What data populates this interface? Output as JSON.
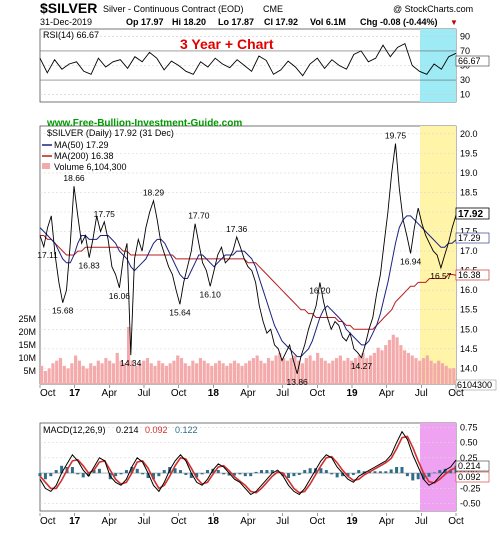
{
  "header": {
    "symbol": "$SILVER",
    "description": "Silver - Continuous Contract (EOD)",
    "exchange": "CME",
    "copyright": "@ StockCharts.com",
    "date": "31-Dec-2019",
    "open": "Op 17.97",
    "high": "Hi 18.20",
    "low": "Lo 17.87",
    "close": "Cl 17.92",
    "volume": "Vol 6.1M",
    "change": "Chg -0.08 (-0.44%)",
    "change_marker": "▼",
    "chart_caption": "3 Year + Chart",
    "website": "www.Free-Bullion-Investment-Guide.com"
  },
  "colors": {
    "price": "#000000",
    "ma50": "#1a237e",
    "ma200": "#b71c1c",
    "volume": "#f4aaaa",
    "macd": "#000000",
    "signal": "#d32f2f",
    "histogram": "#2e6e8a",
    "rsi_highlight": "#9eeaf5",
    "price_highlight": "#fff4a8",
    "macd_highlight": "#f0a2f2",
    "caption": "#e00000",
    "website": "#009900"
  },
  "chart_data": [
    {
      "type": "line",
      "panel": "RSI",
      "title": "RSI(14) 66.67",
      "y_ticks": [
        10,
        30,
        50,
        70,
        90
      ],
      "ylim": [
        0,
        100
      ],
      "last_value_label": "66.67",
      "series": [
        {
          "name": "RSI(14)",
          "values": [
            60,
            40,
            58,
            45,
            52,
            55,
            42,
            38,
            60,
            48,
            55,
            58,
            46,
            62,
            55,
            68,
            60,
            44,
            56,
            50,
            42,
            38,
            55,
            48,
            60,
            52,
            47,
            58,
            50,
            42,
            63,
            57,
            38,
            44,
            56,
            48,
            36,
            52,
            60,
            46,
            58,
            50,
            45,
            65,
            70,
            55,
            60,
            78,
            62,
            75,
            80,
            50,
            42,
            38,
            52,
            45,
            62,
            66.67
          ]
        }
      ]
    },
    {
      "type": "line",
      "panel": "Price",
      "title": "$SILVER (Daily) 17.92 (31 Dec)",
      "x_ticks": [
        "Oct",
        "17",
        "Apr",
        "Jul",
        "Oct",
        "18",
        "Apr",
        "Jul",
        "Oct",
        "19",
        "Apr",
        "Jul",
        "Oct"
      ],
      "y_ticks": [
        14.0,
        14.5,
        15.0,
        15.5,
        16.0,
        16.5,
        17.0,
        17.5,
        18.0,
        18.5,
        19.0,
        19.5,
        20.0
      ],
      "ylim": [
        13.6,
        20.2
      ],
      "volume_ticks": [
        "5M",
        "10M",
        "15M",
        "20M",
        "25M"
      ],
      "last_volume_label": "6104300",
      "right_labels": [
        "17.92",
        "17.29",
        "16.38"
      ],
      "annotations": [
        {
          "label": "17.11",
          "x": 2,
          "y": 17.11
        },
        {
          "label": "18.66",
          "x": 9,
          "y": 18.66
        },
        {
          "label": "15.68",
          "x": 6,
          "y": 15.68
        },
        {
          "label": "16.83",
          "x": 13,
          "y": 16.83
        },
        {
          "label": "17.75",
          "x": 17,
          "y": 17.75
        },
        {
          "label": "16.06",
          "x": 21,
          "y": 16.06
        },
        {
          "label": "14.34",
          "x": 24,
          "y": 14.34
        },
        {
          "label": "18.29",
          "x": 30,
          "y": 18.29
        },
        {
          "label": "15.64",
          "x": 37,
          "y": 15.64
        },
        {
          "label": "17.70",
          "x": 42,
          "y": 17.7
        },
        {
          "label": "16.10",
          "x": 45,
          "y": 16.1
        },
        {
          "label": "17.36",
          "x": 52,
          "y": 17.36
        },
        {
          "label": "13.86",
          "x": 68,
          "y": 13.86
        },
        {
          "label": "16.20",
          "x": 74,
          "y": 16.2
        },
        {
          "label": "14.27",
          "x": 85,
          "y": 14.27
        },
        {
          "label": "19.75",
          "x": 94,
          "y": 19.75
        },
        {
          "label": "16.94",
          "x": 98,
          "y": 16.94
        },
        {
          "label": "16.57",
          "x": 106,
          "y": 16.57
        }
      ],
      "series": [
        {
          "name": "$SILVER (Daily) 17.92",
          "values": [
            17.4,
            17.11,
            17.6,
            17.9,
            16.9,
            16.2,
            15.68,
            16.0,
            17.2,
            18.66,
            17.9,
            17.2,
            17.4,
            16.83,
            17.3,
            17.9,
            17.5,
            17.75,
            17.3,
            16.6,
            16.4,
            16.06,
            16.8,
            17.2,
            14.34,
            16.8,
            17.3,
            17.0,
            17.6,
            18.0,
            18.29,
            17.8,
            17.2,
            16.9,
            16.6,
            16.4,
            16.0,
            15.64,
            16.2,
            16.6,
            17.0,
            17.7,
            17.2,
            16.7,
            16.5,
            16.1,
            16.5,
            16.9,
            17.1,
            16.7,
            16.8,
            17.0,
            17.36,
            17.1,
            16.8,
            16.6,
            16.5,
            16.2,
            15.6,
            15.2,
            14.9,
            15.0,
            14.6,
            14.5,
            14.2,
            14.4,
            14.6,
            14.2,
            13.86,
            14.3,
            14.6,
            15.0,
            15.3,
            15.6,
            16.2,
            15.7,
            15.3,
            15.0,
            15.2,
            15.1,
            14.8,
            14.7,
            14.9,
            14.5,
            14.4,
            14.27,
            14.6,
            15.0,
            15.3,
            15.9,
            16.4,
            17.2,
            18.0,
            19.0,
            19.75,
            18.6,
            17.8,
            17.4,
            16.94,
            17.6,
            18.1,
            17.7,
            17.4,
            17.2,
            17.0,
            16.9,
            16.57,
            16.9,
            17.2,
            17.6,
            17.92
          ]
        },
        {
          "name": "MA(50) 17.29",
          "values": [
            17.6,
            17.5,
            17.4,
            17.3,
            17.2,
            17.0,
            16.8,
            16.7,
            16.7,
            16.9,
            17.2,
            17.4,
            17.4,
            17.3,
            17.3,
            17.3,
            17.4,
            17.4,
            17.4,
            17.3,
            17.2,
            17.0,
            16.9,
            16.8,
            16.6,
            16.5,
            16.6,
            16.7,
            16.8,
            17.0,
            17.2,
            17.3,
            17.3,
            17.2,
            17.0,
            16.8,
            16.6,
            16.4,
            16.3,
            16.3,
            16.5,
            16.7,
            16.9,
            16.9,
            16.8,
            16.7,
            16.6,
            16.7,
            16.8,
            16.9,
            16.9,
            16.9,
            17.0,
            17.0,
            17.0,
            16.9,
            16.8,
            16.6,
            16.3,
            16.0,
            15.7,
            15.4,
            15.1,
            14.9,
            14.7,
            14.6,
            14.5,
            14.4,
            14.3,
            14.3,
            14.4,
            14.5,
            14.7,
            15.0,
            15.3,
            15.5,
            15.6,
            15.5,
            15.4,
            15.3,
            15.2,
            15.0,
            14.9,
            14.8,
            14.7,
            14.6,
            14.6,
            14.7,
            14.9,
            15.1,
            15.4,
            15.8,
            16.2,
            16.7,
            17.2,
            17.6,
            17.8,
            17.9,
            17.9,
            17.8,
            17.7,
            17.6,
            17.5,
            17.4,
            17.3,
            17.2,
            17.1,
            17.1,
            17.2,
            17.2,
            17.29
          ]
        },
        {
          "name": "MA(200) 16.38",
          "values": [
            17.4,
            17.4,
            17.3,
            17.3,
            17.2,
            17.1,
            17.0,
            16.9,
            16.9,
            16.9,
            17.0,
            17.0,
            17.1,
            17.1,
            17.1,
            17.1,
            17.1,
            17.1,
            17.1,
            17.1,
            17.1,
            17.1,
            17.0,
            17.0,
            16.9,
            16.9,
            16.9,
            16.9,
            16.9,
            16.9,
            16.9,
            16.9,
            16.9,
            16.9,
            16.9,
            16.9,
            16.8,
            16.8,
            16.8,
            16.8,
            16.8,
            16.8,
            16.8,
            16.8,
            16.8,
            16.8,
            16.8,
            16.8,
            16.8,
            16.8,
            16.8,
            16.8,
            16.8,
            16.8,
            16.8,
            16.7,
            16.7,
            16.7,
            16.6,
            16.5,
            16.4,
            16.3,
            16.2,
            16.1,
            16.0,
            15.9,
            15.8,
            15.7,
            15.6,
            15.5,
            15.5,
            15.4,
            15.4,
            15.3,
            15.3,
            15.3,
            15.3,
            15.3,
            15.3,
            15.2,
            15.2,
            15.1,
            15.1,
            15.0,
            15.0,
            15.0,
            15.0,
            15.0,
            15.0,
            15.1,
            15.2,
            15.3,
            15.4,
            15.5,
            15.7,
            15.8,
            15.9,
            16.0,
            16.1,
            16.1,
            16.2,
            16.2,
            16.2,
            16.3,
            16.3,
            16.3,
            16.3,
            16.3,
            16.4,
            16.4,
            16.38
          ]
        },
        {
          "name": "Volume 6,104,300",
          "values": [
            7,
            5,
            6,
            8,
            9,
            10,
            7,
            6,
            8,
            11,
            9,
            7,
            6,
            8,
            7,
            9,
            8,
            10,
            9,
            8,
            12,
            9,
            8,
            22,
            9,
            7,
            8,
            9,
            10,
            8,
            7,
            9,
            8,
            7,
            8,
            9,
            11,
            10,
            8,
            7,
            9,
            8,
            10,
            9,
            8,
            7,
            8,
            9,
            8,
            7,
            8,
            9,
            8,
            7,
            8,
            9,
            10,
            11,
            9,
            8,
            10,
            9,
            11,
            12,
            10,
            9,
            10,
            11,
            9,
            8,
            10,
            11,
            9,
            12,
            10,
            9,
            8,
            9,
            10,
            11,
            9,
            10,
            9,
            10,
            11,
            12,
            10,
            11,
            12,
            14,
            13,
            15,
            17,
            19,
            18,
            15,
            13,
            12,
            11,
            10,
            9,
            10,
            11,
            9,
            8,
            9,
            8,
            7,
            6,
            6.1
          ]
        }
      ]
    },
    {
      "type": "line",
      "panel": "MACD",
      "title": "MACD(12,26,9) 0.214, 0.092, 0.122",
      "legend": [
        "MACD(12,26,9)",
        "0.214",
        "0.092",
        "0.122"
      ],
      "y_ticks": [
        -0.5,
        -0.25,
        0,
        0.25,
        0.5,
        0.75
      ],
      "ylim": [
        -0.62,
        0.82
      ],
      "right_labels": [
        "0.214",
        "0.092"
      ],
      "x_ticks": [
        "Oct",
        "17",
        "Apr",
        "Jul",
        "Oct",
        "18",
        "Apr",
        "Jul",
        "Oct",
        "19",
        "Apr",
        "Jul",
        "Oct"
      ],
      "series": [
        {
          "name": "MACD",
          "values": [
            -0.1,
            -0.25,
            -0.3,
            -0.2,
            0.0,
            0.15,
            0.3,
            0.2,
            0.05,
            -0.05,
            0.1,
            0.25,
            0.2,
            -0.05,
            -0.15,
            -0.2,
            -0.1,
            0.1,
            0.25,
            0.18,
            0.0,
            -0.2,
            -0.3,
            -0.15,
            0.05,
            0.2,
            0.3,
            0.2,
            0.0,
            -0.15,
            -0.2,
            -0.1,
            0.05,
            0.15,
            0.1,
            0.0,
            -0.1,
            -0.15,
            -0.25,
            -0.35,
            -0.3,
            -0.2,
            -0.1,
            0.0,
            0.05,
            -0.05,
            -0.2,
            -0.3,
            -0.35,
            -0.25,
            -0.1,
            0.05,
            0.2,
            0.3,
            0.25,
            0.1,
            0.0,
            -0.1,
            -0.15,
            -0.05,
            0.0,
            0.05,
            0.1,
            0.15,
            0.2,
            0.3,
            0.5,
            0.68,
            0.55,
            0.3,
            0.1,
            -0.1,
            -0.2,
            -0.15,
            -0.05,
            0.05,
            0.1,
            0.214
          ]
        },
        {
          "name": "Signal",
          "values": [
            -0.05,
            -0.15,
            -0.25,
            -0.25,
            -0.12,
            0.05,
            0.2,
            0.22,
            0.12,
            0.0,
            0.05,
            0.18,
            0.2,
            0.05,
            -0.1,
            -0.18,
            -0.15,
            0.0,
            0.18,
            0.2,
            0.08,
            -0.1,
            -0.25,
            -0.2,
            -0.05,
            0.12,
            0.25,
            0.23,
            0.08,
            -0.08,
            -0.18,
            -0.15,
            -0.02,
            0.1,
            0.12,
            0.04,
            -0.06,
            -0.13,
            -0.2,
            -0.3,
            -0.32,
            -0.25,
            -0.15,
            -0.05,
            0.02,
            0.0,
            -0.12,
            -0.25,
            -0.32,
            -0.3,
            -0.18,
            -0.03,
            0.12,
            0.25,
            0.27,
            0.17,
            0.05,
            -0.05,
            -0.12,
            -0.1,
            -0.03,
            0.02,
            0.07,
            0.12,
            0.17,
            0.24,
            0.4,
            0.58,
            0.6,
            0.42,
            0.2,
            0.0,
            -0.14,
            -0.16,
            -0.1,
            -0.02,
            0.05,
            0.092
          ]
        },
        {
          "name": "Histogram",
          "values": [
            -0.05,
            -0.1,
            -0.05,
            0.05,
            0.12,
            0.1,
            0.1,
            -0.02,
            -0.07,
            -0.05,
            0.05,
            0.07,
            0.0,
            -0.1,
            -0.05,
            -0.02,
            0.05,
            0.1,
            0.07,
            -0.02,
            -0.08,
            -0.1,
            -0.05,
            0.05,
            0.1,
            0.08,
            0.05,
            -0.03,
            -0.08,
            -0.07,
            -0.02,
            0.05,
            0.07,
            0.05,
            -0.02,
            -0.04,
            -0.04,
            -0.02,
            -0.05,
            -0.05,
            0.02,
            0.05,
            0.05,
            0.05,
            0.03,
            -0.05,
            -0.08,
            -0.05,
            -0.03,
            0.05,
            0.08,
            0.08,
            0.08,
            0.05,
            -0.02,
            -0.07,
            -0.05,
            -0.05,
            -0.03,
            0.05,
            0.03,
            0.03,
            0.03,
            0.03,
            0.03,
            0.06,
            0.1,
            0.1,
            -0.05,
            -0.12,
            -0.1,
            -0.1,
            -0.06,
            0.01,
            0.05,
            0.07,
            0.05,
            0.122
          ]
        }
      ]
    }
  ]
}
